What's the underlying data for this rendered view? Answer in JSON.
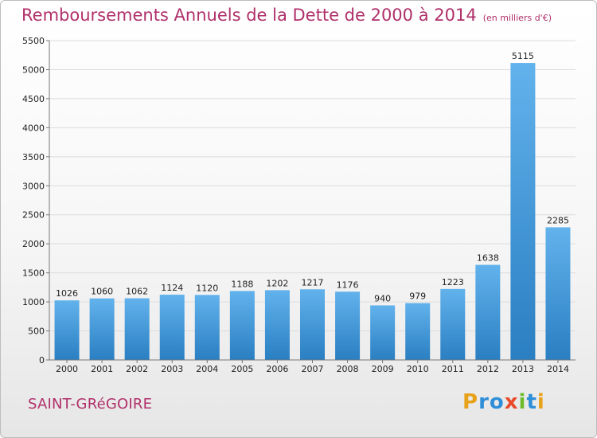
{
  "header": {
    "title": "Remboursements Annuels de la Dette de 2000 à 2014",
    "unit": "(en milliers d'€)"
  },
  "footer": {
    "commune": "SAINT-GRéGOIRE",
    "logo_letters": [
      "P",
      "r",
      "o",
      "x",
      "i",
      "t",
      "i"
    ],
    "logo_colors": [
      "#e8a21a",
      "#2f8ed8",
      "#2f8ed8",
      "#e84a2a",
      "#6dbb2c",
      "#2f8ed8",
      "#e8a21a"
    ]
  },
  "colors": {
    "title": "#b0306a",
    "bar_light": "#62b2ec",
    "bar_dark": "#2a7fc2",
    "grid": "#dcdcdc",
    "axis": "#777777"
  },
  "chart_data": {
    "type": "bar",
    "title": "Remboursements Annuels de la Dette de 2000 à 2014",
    "subtitle": "(en milliers d'€)",
    "categories": [
      "2000",
      "2001",
      "2002",
      "2003",
      "2004",
      "2005",
      "2006",
      "2007",
      "2008",
      "2009",
      "2010",
      "2011",
      "2012",
      "2013",
      "2014"
    ],
    "values": [
      1026,
      1060,
      1062,
      1124,
      1120,
      1188,
      1202,
      1217,
      1176,
      940,
      979,
      1223,
      1638,
      5115,
      2285
    ],
    "ylim": [
      0,
      5500
    ],
    "yticks": [
      0,
      500,
      1000,
      1500,
      2000,
      2500,
      3000,
      3500,
      4000,
      4500,
      5000,
      5500
    ],
    "grid": true,
    "data_labels": true
  }
}
